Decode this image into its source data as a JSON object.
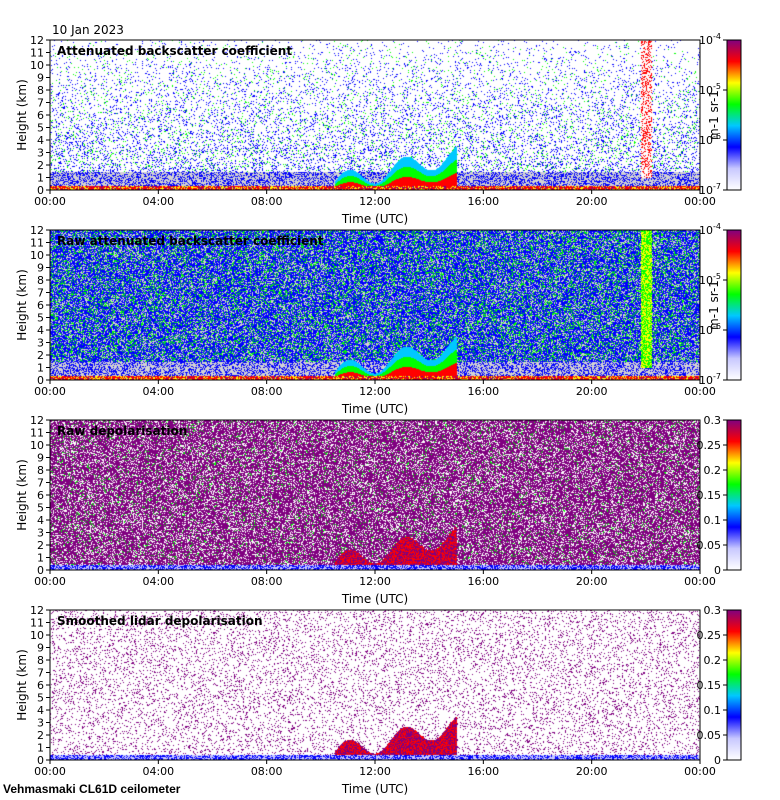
{
  "header": {
    "date": "10 Jan 2023"
  },
  "footer": {
    "station": "Vehmasmaki CL61D ceilometer"
  },
  "colors": {
    "background_gray": "#d3d3d3",
    "mask_white": "#ffffff",
    "colormap": [
      "#ffffff",
      "#c8c8ff",
      "#0000ff",
      "#00c8ff",
      "#00ff00",
      "#ffff00",
      "#ff0000",
      "#800080"
    ]
  },
  "chart_data": [
    {
      "type": "heatmap",
      "title": "Attenuated backscatter coefficient",
      "xlabel": "Time (UTC)",
      "ylabel": "Height (km)",
      "xticks": [
        "00:00",
        "04:00",
        "08:00",
        "12:00",
        "16:00",
        "20:00",
        "00:00"
      ],
      "yticks": [
        "0",
        "1",
        "2",
        "3",
        "4",
        "5",
        "6",
        "7",
        "8",
        "9",
        "10",
        "11",
        "12"
      ],
      "ylim": [
        0,
        12
      ],
      "colorbar": {
        "scale": "log",
        "ticks": [
          "10-7",
          "10-6",
          "10-5",
          "10-4"
        ],
        "label": "m-1 sr-1"
      }
    },
    {
      "type": "heatmap",
      "title": "Raw attenuated backscatter coefficient",
      "xlabel": "Time (UTC)",
      "ylabel": "Height (km)",
      "xticks": [
        "00:00",
        "04:00",
        "08:00",
        "12:00",
        "16:00",
        "20:00",
        "00:00"
      ],
      "yticks": [
        "0",
        "1",
        "2",
        "3",
        "4",
        "5",
        "6",
        "7",
        "8",
        "9",
        "10",
        "11",
        "12"
      ],
      "ylim": [
        0,
        12
      ],
      "colorbar": {
        "scale": "log",
        "ticks": [
          "10-7",
          "10-6",
          "10-5",
          "10-4"
        ],
        "label": "m-1 sr-1"
      }
    },
    {
      "type": "heatmap",
      "title": "Raw depolarisation",
      "xlabel": "Time (UTC)",
      "ylabel": "Height (km)",
      "xticks": [
        "00:00",
        "04:00",
        "08:00",
        "12:00",
        "16:00",
        "20:00",
        "00:00"
      ],
      "yticks": [
        "0",
        "1",
        "2",
        "3",
        "4",
        "5",
        "6",
        "7",
        "8",
        "9",
        "10",
        "11",
        "12"
      ],
      "ylim": [
        0,
        12
      ],
      "colorbar": {
        "scale": "linear",
        "ticks": [
          "0",
          "0.05",
          "0.1",
          "0.15",
          "0.2",
          "0.25",
          "0.3"
        ],
        "label": ""
      }
    },
    {
      "type": "heatmap",
      "title": "Smoothed lidar depolarisation",
      "xlabel": "Time (UTC)",
      "ylabel": "Height (km)",
      "xticks": [
        "00:00",
        "04:00",
        "08:00",
        "12:00",
        "16:00",
        "20:00",
        "00:00"
      ],
      "yticks": [
        "0",
        "1",
        "2",
        "3",
        "4",
        "5",
        "6",
        "7",
        "8",
        "9",
        "10",
        "11",
        "12"
      ],
      "ylim": [
        0,
        12
      ],
      "colorbar": {
        "scale": "linear",
        "ticks": [
          "0",
          "0.05",
          "0.1",
          "0.15",
          "0.2",
          "0.25",
          "0.3"
        ],
        "label": ""
      }
    }
  ]
}
